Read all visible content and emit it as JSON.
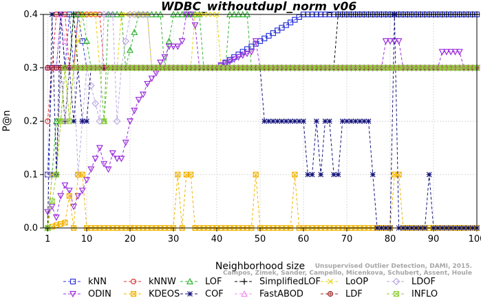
{
  "chart_data": {
    "type": "line",
    "title": "WDBC_withoutdupl_norm_v06",
    "xlabel": "Neighborhood size",
    "ylabel": "P@n",
    "xlim": [
      0,
      100
    ],
    "ylim": [
      0,
      0.4
    ],
    "x_ticks": [
      1,
      10,
      20,
      30,
      40,
      50,
      60,
      70,
      80,
      90,
      100
    ],
    "y_ticks": [
      "0.0",
      "0.1",
      "0.2",
      "0.3",
      "0.4"
    ],
    "credit": "Campos, Zimek, Sander, Campello, Micenkova, Schubert, Assent, Houle",
    "credit_line1": "Unsupervised Outlier Detection, DAMI, 2015.",
    "legend_position": "bottom",
    "series": [
      {
        "name": "kNN",
        "color": "#2b35d6",
        "marker": "square",
        "points": [
          [
            1,
            0.1
          ],
          [
            2,
            0.3
          ],
          [
            3,
            0.3
          ],
          [
            4,
            0.4
          ],
          [
            5,
            0.3
          ],
          [
            6,
            0.4
          ],
          [
            7,
            0.3
          ],
          [
            8,
            0.4
          ],
          [
            10,
            0.3
          ],
          [
            20,
            0.3
          ],
          [
            40,
            0.3
          ],
          [
            60,
            0.4
          ],
          [
            100,
            0.4
          ]
        ]
      },
      {
        "name": "kNNW",
        "color": "#e03030",
        "marker": "circle",
        "points": [
          [
            1,
            0.2
          ],
          [
            2,
            0.3
          ],
          [
            3,
            0.4
          ],
          [
            5,
            0.4
          ],
          [
            6,
            0.3
          ],
          [
            7,
            0.3
          ],
          [
            8,
            0.4
          ],
          [
            10,
            0.4
          ],
          [
            13,
            0.4
          ],
          [
            14,
            0.3
          ],
          [
            40,
            0.3
          ],
          [
            60,
            0.3
          ],
          [
            100,
            0.3
          ]
        ]
      },
      {
        "name": "LOF",
        "color": "#2fb32f",
        "marker": "triangle",
        "points": [
          [
            1,
            0
          ],
          [
            2,
            0.1
          ],
          [
            3,
            0.2
          ],
          [
            4,
            0.2
          ],
          [
            5,
            0.3
          ],
          [
            6,
            0.3
          ],
          [
            7,
            0.4
          ],
          [
            9,
            0.4
          ],
          [
            11,
            0.3
          ],
          [
            13,
            0.3
          ],
          [
            14,
            0.2
          ],
          [
            15,
            0.4
          ],
          [
            18,
            0.4
          ],
          [
            19,
            0.3
          ],
          [
            22,
            0.4
          ],
          [
            27,
            0.4
          ],
          [
            28,
            0.3
          ],
          [
            30,
            0.4
          ],
          [
            36,
            0.4
          ],
          [
            37,
            0.3
          ],
          [
            42,
            0.3
          ],
          [
            43,
            0.4
          ],
          [
            47,
            0.4
          ],
          [
            48,
            0.3
          ],
          [
            100,
            0.3
          ]
        ]
      },
      {
        "name": "SimplifiedLOF",
        "color": "#000000",
        "marker": "plus",
        "points": [
          [
            1,
            0
          ],
          [
            2,
            0.1
          ],
          [
            3,
            0.1
          ],
          [
            4,
            0.3
          ],
          [
            5,
            0.2
          ],
          [
            6,
            0.3
          ],
          [
            7,
            0.4
          ],
          [
            8,
            0.3
          ],
          [
            40,
            0.3
          ],
          [
            60,
            0.3
          ],
          [
            67,
            0.3
          ],
          [
            68,
            0.4
          ],
          [
            100,
            0.4
          ]
        ]
      },
      {
        "name": "LoOP",
        "color": "#e6d200",
        "marker": "x",
        "points": [
          [
            1,
            0
          ],
          [
            2,
            0.1
          ],
          [
            3,
            0.1
          ],
          [
            4,
            0.2
          ],
          [
            5,
            0.3
          ],
          [
            6,
            0.2
          ],
          [
            7,
            0.3
          ],
          [
            9,
            0.4
          ],
          [
            12,
            0.4
          ],
          [
            13,
            0.3
          ],
          [
            17,
            0.3
          ],
          [
            18,
            0.4
          ],
          [
            24,
            0.4
          ],
          [
            25,
            0.3
          ],
          [
            34,
            0.3
          ],
          [
            35,
            0.4
          ],
          [
            40,
            0.4
          ],
          [
            41,
            0.3
          ],
          [
            100,
            0.3
          ]
        ]
      },
      {
        "name": "LDOF",
        "color": "#b9a6e0",
        "marker": "diamond",
        "points": [
          [
            1,
            0.1
          ],
          [
            2,
            0.1
          ],
          [
            3,
            0.1
          ],
          [
            4,
            0.3
          ],
          [
            5,
            0.2
          ],
          [
            6,
            0.3
          ],
          [
            7,
            0.3
          ],
          [
            8,
            0.1
          ],
          [
            9,
            0.2
          ],
          [
            10,
            0.3
          ],
          [
            13,
            0.2
          ],
          [
            14,
            0.4
          ],
          [
            16,
            0.4
          ],
          [
            17,
            0.2
          ],
          [
            18,
            0.3
          ],
          [
            20,
            0.4
          ],
          [
            24,
            0.4
          ],
          [
            25,
            0.3
          ],
          [
            100,
            0.3
          ]
        ]
      },
      {
        "name": "ODIN",
        "color": "#9a2bdc",
        "marker": "triangle-down",
        "points": [
          [
            1,
            0.03
          ],
          [
            2,
            0.04
          ],
          [
            3,
            0.02
          ],
          [
            4,
            0.06
          ],
          [
            5,
            0.08
          ],
          [
            6,
            0.07
          ],
          [
            7,
            0.04
          ],
          [
            8,
            0.06
          ],
          [
            9,
            0.07
          ],
          [
            10,
            0.09
          ],
          [
            11,
            0.11
          ],
          [
            12,
            0.13
          ],
          [
            13,
            0.15
          ],
          [
            14,
            0.12
          ],
          [
            15,
            0.11
          ],
          [
            16,
            0.14
          ],
          [
            17,
            0.13
          ],
          [
            18,
            0.13
          ],
          [
            19,
            0.16
          ],
          [
            20,
            0.2
          ],
          [
            21,
            0.22
          ],
          [
            22,
            0.24
          ],
          [
            23,
            0.25
          ],
          [
            24,
            0.27
          ],
          [
            25,
            0.28
          ],
          [
            26,
            0.29
          ],
          [
            27,
            0.31
          ],
          [
            28,
            0.32
          ],
          [
            29,
            0.34
          ],
          [
            30,
            0.34
          ],
          [
            31,
            0.34
          ],
          [
            32,
            0.35
          ],
          [
            33,
            0.4
          ],
          [
            34,
            0.4
          ],
          [
            35,
            0.38
          ],
          [
            36,
            0.3
          ],
          [
            40,
            0.3
          ],
          [
            45,
            0.32
          ],
          [
            48,
            0.33
          ],
          [
            49,
            0.35
          ],
          [
            50,
            0.3
          ],
          [
            70,
            0.3
          ],
          [
            78,
            0.3
          ],
          [
            79,
            0.35
          ],
          [
            82,
            0.35
          ],
          [
            83,
            0.3
          ],
          [
            91,
            0.3
          ],
          [
            92,
            0.33
          ],
          [
            96,
            0.33
          ],
          [
            97,
            0.3
          ],
          [
            100,
            0.3
          ]
        ]
      },
      {
        "name": "KDEOS",
        "color": "#f2b300",
        "marker": "square-x",
        "points": [
          [
            1,
            0
          ],
          [
            5,
            0.01
          ],
          [
            6,
            0.06
          ],
          [
            7,
            0.0
          ],
          [
            8,
            0.1
          ],
          [
            9,
            0.1
          ],
          [
            10,
            0.0
          ],
          [
            30,
            0.0
          ],
          [
            31,
            0.1
          ],
          [
            32,
            0.0
          ],
          [
            33,
            0.1
          ],
          [
            34,
            0.1
          ],
          [
            35,
            0.0
          ],
          [
            48,
            0.0
          ],
          [
            49,
            0.1
          ],
          [
            50,
            0.0
          ],
          [
            57,
            0.0
          ],
          [
            58,
            0.1
          ],
          [
            59,
            0.0
          ],
          [
            80,
            0.0
          ],
          [
            81,
            0.1
          ],
          [
            82,
            0.1
          ],
          [
            83,
            0.0
          ],
          [
            100,
            0.0
          ]
        ]
      },
      {
        "name": "COF",
        "color": "#12127a",
        "marker": "asterisk",
        "points": [
          [
            1,
            0
          ],
          [
            2,
            0.4
          ],
          [
            3,
            0.1
          ],
          [
            4,
            0.4
          ],
          [
            5,
            0.3
          ],
          [
            6,
            0.3
          ],
          [
            7,
            0.2
          ],
          [
            8,
            0.3
          ],
          [
            9,
            0.2
          ],
          [
            10,
            0.2
          ],
          [
            11,
            0.3
          ],
          [
            40,
            0.3
          ],
          [
            50,
            0.3
          ],
          [
            51,
            0.2
          ],
          [
            60,
            0.2
          ],
          [
            61,
            0.1
          ],
          [
            62,
            0.1
          ],
          [
            63,
            0.2
          ],
          [
            64,
            0.1
          ],
          [
            65,
            0.2
          ],
          [
            66,
            0.2
          ],
          [
            67,
            0.1
          ],
          [
            68,
            0.1
          ],
          [
            69,
            0.2
          ],
          [
            75,
            0.2
          ],
          [
            76,
            0.1
          ],
          [
            77,
            0.0
          ],
          [
            80,
            0.0
          ],
          [
            81,
            0.4
          ],
          [
            82,
            0.0
          ],
          [
            88,
            0.0
          ],
          [
            89,
            0.1
          ],
          [
            90,
            0.0
          ],
          [
            100,
            0.0
          ]
        ]
      },
      {
        "name": "FastABOD",
        "color": "#f08ef0",
        "marker": "triangle",
        "points": [
          [
            1,
            0.3
          ],
          [
            3,
            0.3
          ],
          [
            4,
            0.4
          ],
          [
            6,
            0.3
          ],
          [
            100,
            0.3
          ]
        ]
      },
      {
        "name": "LDF",
        "color": "#9a2222",
        "marker": "circle-plus",
        "points": [
          [
            1,
            0.3
          ],
          [
            40,
            0.3
          ],
          [
            60,
            0.3
          ],
          [
            75,
            0.3
          ],
          [
            100,
            0.3
          ]
        ]
      },
      {
        "name": "INFLO",
        "color": "#8ecf3a",
        "marker": "square-x",
        "points": [
          [
            1,
            0
          ],
          [
            3,
            0.1
          ],
          [
            4,
            0.2
          ],
          [
            5,
            0.3
          ],
          [
            6,
            0.2
          ],
          [
            7,
            0.3
          ],
          [
            13,
            0.3
          ],
          [
            14,
            0.2
          ],
          [
            15,
            0.3
          ],
          [
            100,
            0.3
          ]
        ]
      }
    ]
  }
}
